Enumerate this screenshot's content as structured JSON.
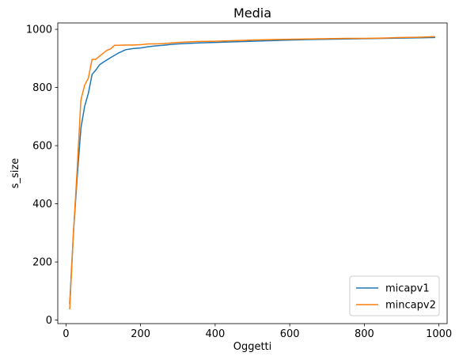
{
  "chart_data": {
    "type": "line",
    "title": "Media",
    "xlabel": "Oggetti",
    "ylabel": "s_size",
    "xlim": [
      -22,
      1022
    ],
    "ylim": [
      -12,
      1022
    ],
    "xticks": [
      0,
      200,
      400,
      600,
      800,
      1000
    ],
    "yticks": [
      0,
      200,
      400,
      600,
      800,
      1000
    ],
    "grid": false,
    "legend_position": "lower-right",
    "series": [
      {
        "name": "micapv1",
        "color": "#1f77b4",
        "x": [
          10,
          20,
          30,
          40,
          50,
          60,
          70,
          80,
          90,
          100,
          120,
          140,
          160,
          180,
          200,
          220,
          240,
          260,
          280,
          300,
          350,
          400,
          450,
          500,
          550,
          600,
          650,
          700,
          750,
          800,
          850,
          900,
          950,
          990
        ],
        "y": [
          55,
          300,
          490,
          660,
          735,
          780,
          845,
          860,
          878,
          887,
          903,
          918,
          930,
          934,
          936,
          940,
          943,
          945,
          948,
          950,
          953,
          955,
          957,
          959,
          961,
          963,
          965,
          966,
          967,
          968,
          969,
          970,
          971,
          972
        ]
      },
      {
        "name": "mincapv2",
        "color": "#ff7f0e",
        "x": [
          10,
          20,
          30,
          40,
          50,
          60,
          70,
          80,
          90,
          100,
          110,
          120,
          130,
          140,
          160,
          180,
          200,
          220,
          240,
          260,
          280,
          300,
          350,
          400,
          450,
          500,
          550,
          600,
          650,
          700,
          750,
          800,
          850,
          900,
          950,
          990
        ],
        "y": [
          37,
          300,
          520,
          757,
          808,
          832,
          897,
          897,
          908,
          918,
          928,
          933,
          945,
          945,
          946,
          946,
          947,
          950,
          950,
          951,
          953,
          955,
          958,
          959,
          961,
          963,
          965,
          966,
          967,
          968,
          969,
          969,
          970,
          972,
          973,
          975
        ]
      }
    ]
  }
}
